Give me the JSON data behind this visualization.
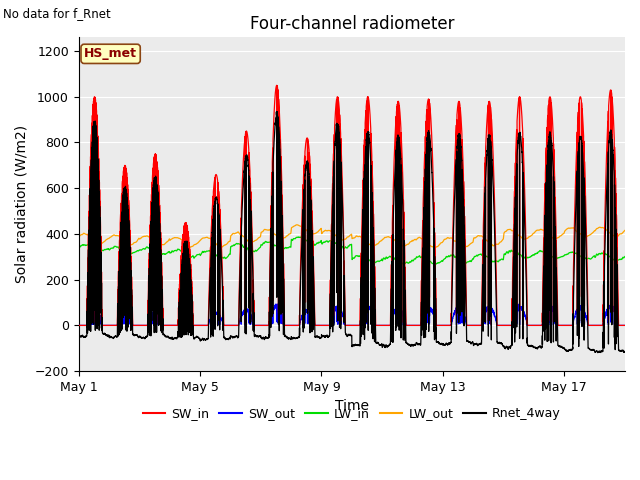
{
  "title": "Four-channel radiometer",
  "top_left_text": "No data for f_Rnet",
  "station_label": "HS_met",
  "xlabel": "Time",
  "ylabel": "Solar radiation (W/m2)",
  "ylim": [
    -200,
    1260
  ],
  "yticks": [
    -200,
    0,
    200,
    400,
    600,
    800,
    1000,
    1200
  ],
  "xtick_positions": [
    0,
    4,
    8,
    12,
    16
  ],
  "xtick_labels": [
    "May 1",
    "May 5",
    "May 9",
    "May 13",
    "May 17"
  ],
  "background_color": "#ffffff",
  "plot_bg_color": "#ebebeb",
  "grid_color": "#ffffff",
  "legend_entries": [
    {
      "label": "SW_in",
      "color": "#ff0000"
    },
    {
      "label": "SW_out",
      "color": "#0000ff"
    },
    {
      "label": "LW_in",
      "color": "#00dd00"
    },
    {
      "label": "LW_out",
      "color": "#ffa500"
    },
    {
      "label": "Rnet_4way",
      "color": "#000000"
    }
  ],
  "n_days": 18,
  "n_pts_per_day": 288,
  "figsize": [
    6.4,
    4.8
  ],
  "dpi": 100
}
